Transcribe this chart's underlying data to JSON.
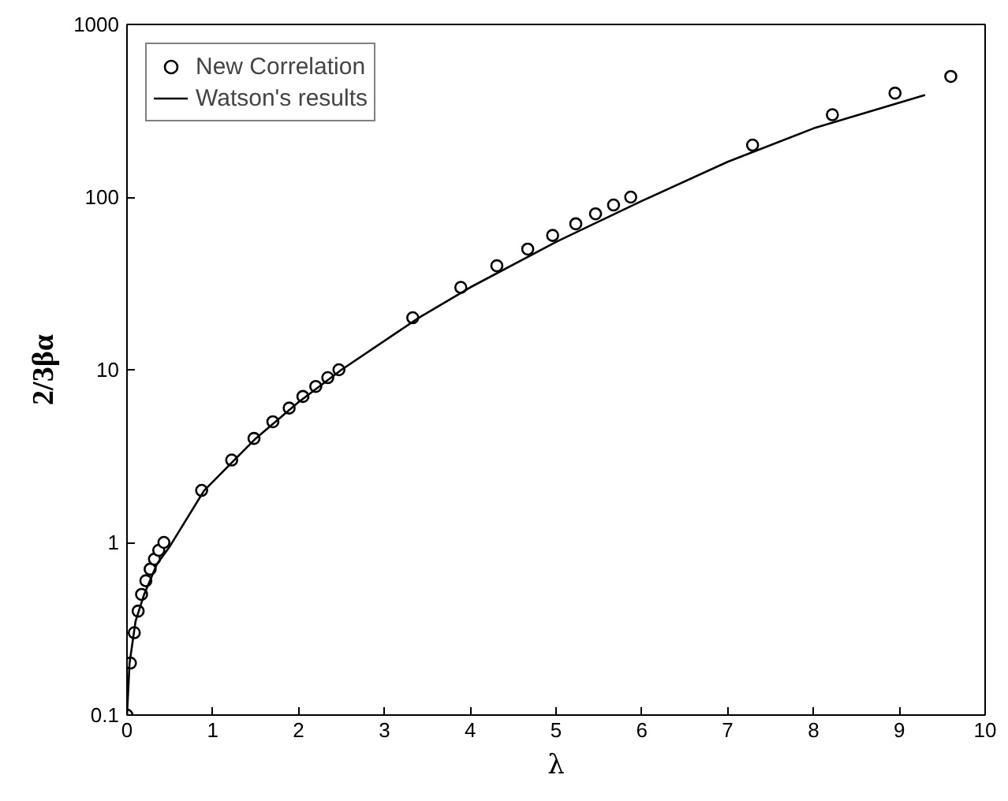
{
  "chart_data": {
    "type": "scatter",
    "xlabel": "λ",
    "ylabel": "2/3βα",
    "log": "y",
    "grid": false,
    "legend": "top left",
    "xlim": [
      0,
      10
    ],
    "ylim": [
      0.1,
      1000
    ],
    "xticks": [
      0,
      1,
      2,
      3,
      4,
      5,
      6,
      7,
      8,
      9,
      10
    ],
    "yticks": [
      0.1,
      1,
      10,
      100,
      1000
    ],
    "series": [
      {
        "name": "New Correlation",
        "marker": "circle",
        "color": "#000000",
        "x": [
          0,
          0.04,
          0.085,
          0.13,
          0.17,
          0.22,
          0.27,
          0.32,
          0.37,
          0.43,
          0.87,
          1.22,
          1.48,
          1.7,
          1.89,
          2.05,
          2.2,
          2.34,
          2.47,
          3.33,
          3.89,
          4.31,
          4.67,
          4.96,
          5.23,
          5.46,
          5.67,
          5.87,
          7.29,
          8.22,
          8.95,
          9.6
        ],
        "values": [
          0.1,
          0.2,
          0.3,
          0.4,
          0.5,
          0.6,
          0.7,
          0.8,
          0.9,
          1,
          2,
          3,
          4,
          5,
          6,
          7,
          8,
          9,
          10,
          20,
          30,
          40,
          50,
          60,
          70,
          80,
          90,
          100,
          200,
          300,
          400,
          500
        ]
      },
      {
        "name": "Watson's results",
        "type": "line",
        "marker": "none",
        "line_style": "solid",
        "color": "#000000",
        "x": [
          0,
          0.03,
          0.1,
          0.2,
          0.35,
          0.5,
          0.9,
          1.5,
          2,
          2.5,
          3.4,
          4,
          5,
          6,
          7,
          8,
          9.3
        ],
        "values": [
          0.1,
          0.2,
          0.35,
          0.5,
          0.75,
          0.95,
          2,
          4,
          6.5,
          10,
          20,
          30,
          55,
          95,
          160,
          250,
          390
        ]
      }
    ]
  }
}
